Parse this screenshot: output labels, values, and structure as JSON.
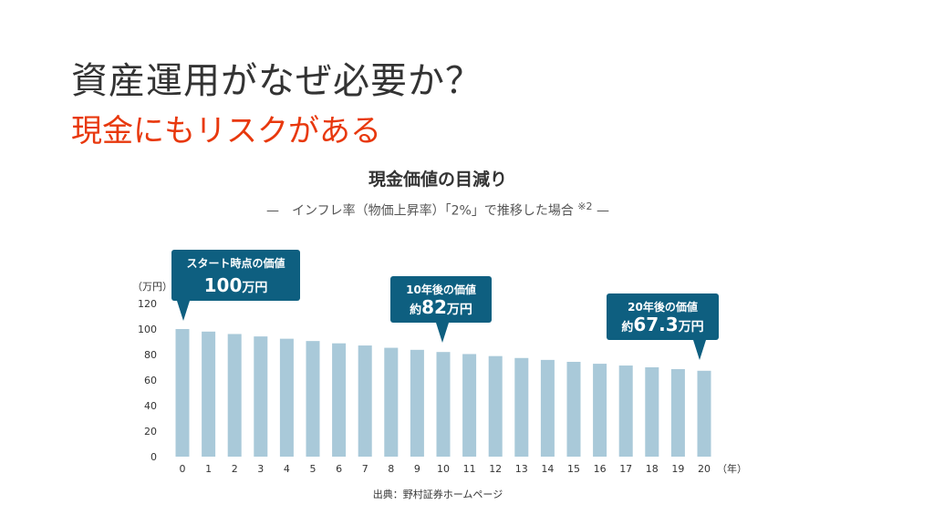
{
  "slide": {
    "title": "資産運用がなぜ必要か？",
    "subtitle": "現金にもリスクがある",
    "source": "出典：野村証券ホームページ"
  },
  "colors": {
    "bar": "#a9c9d9",
    "callout": "#0e5f80",
    "accent_red": "#e8380d",
    "text": "#333333"
  },
  "chart_data": {
    "type": "bar",
    "title": "現金価値の目減り",
    "subtitle_main": "—　インフレ率（物価上昇率）「2%」で推移した場合",
    "subtitle_note": "※2",
    "subtitle_end": "—",
    "ylabel": "（万円）",
    "xunit": "（年）",
    "ylim": [
      0,
      120
    ],
    "yticks": [
      0,
      20,
      40,
      60,
      80,
      100,
      120
    ],
    "categories": [
      "0",
      "1",
      "2",
      "3",
      "4",
      "5",
      "6",
      "7",
      "8",
      "9",
      "10",
      "11",
      "12",
      "13",
      "14",
      "15",
      "16",
      "17",
      "18",
      "19",
      "20"
    ],
    "values": [
      100,
      98,
      96.1,
      94.2,
      92.4,
      90.6,
      88.8,
      87.1,
      85.3,
      83.7,
      82,
      80.4,
      78.8,
      77.3,
      75.8,
      74.3,
      72.8,
      71.4,
      70,
      68.6,
      67.3
    ],
    "grid": false,
    "annotations": [
      {
        "index": 0,
        "line1": "スタート時点の価値",
        "value": "100",
        "unit": "万円",
        "prefix": ""
      },
      {
        "index": 10,
        "line1": "10年後の価値",
        "value": "82",
        "unit": "万円",
        "prefix": "約"
      },
      {
        "index": 20,
        "line1": "20年後の価値",
        "value": "67.3",
        "unit": "万円",
        "prefix": "約"
      }
    ]
  }
}
